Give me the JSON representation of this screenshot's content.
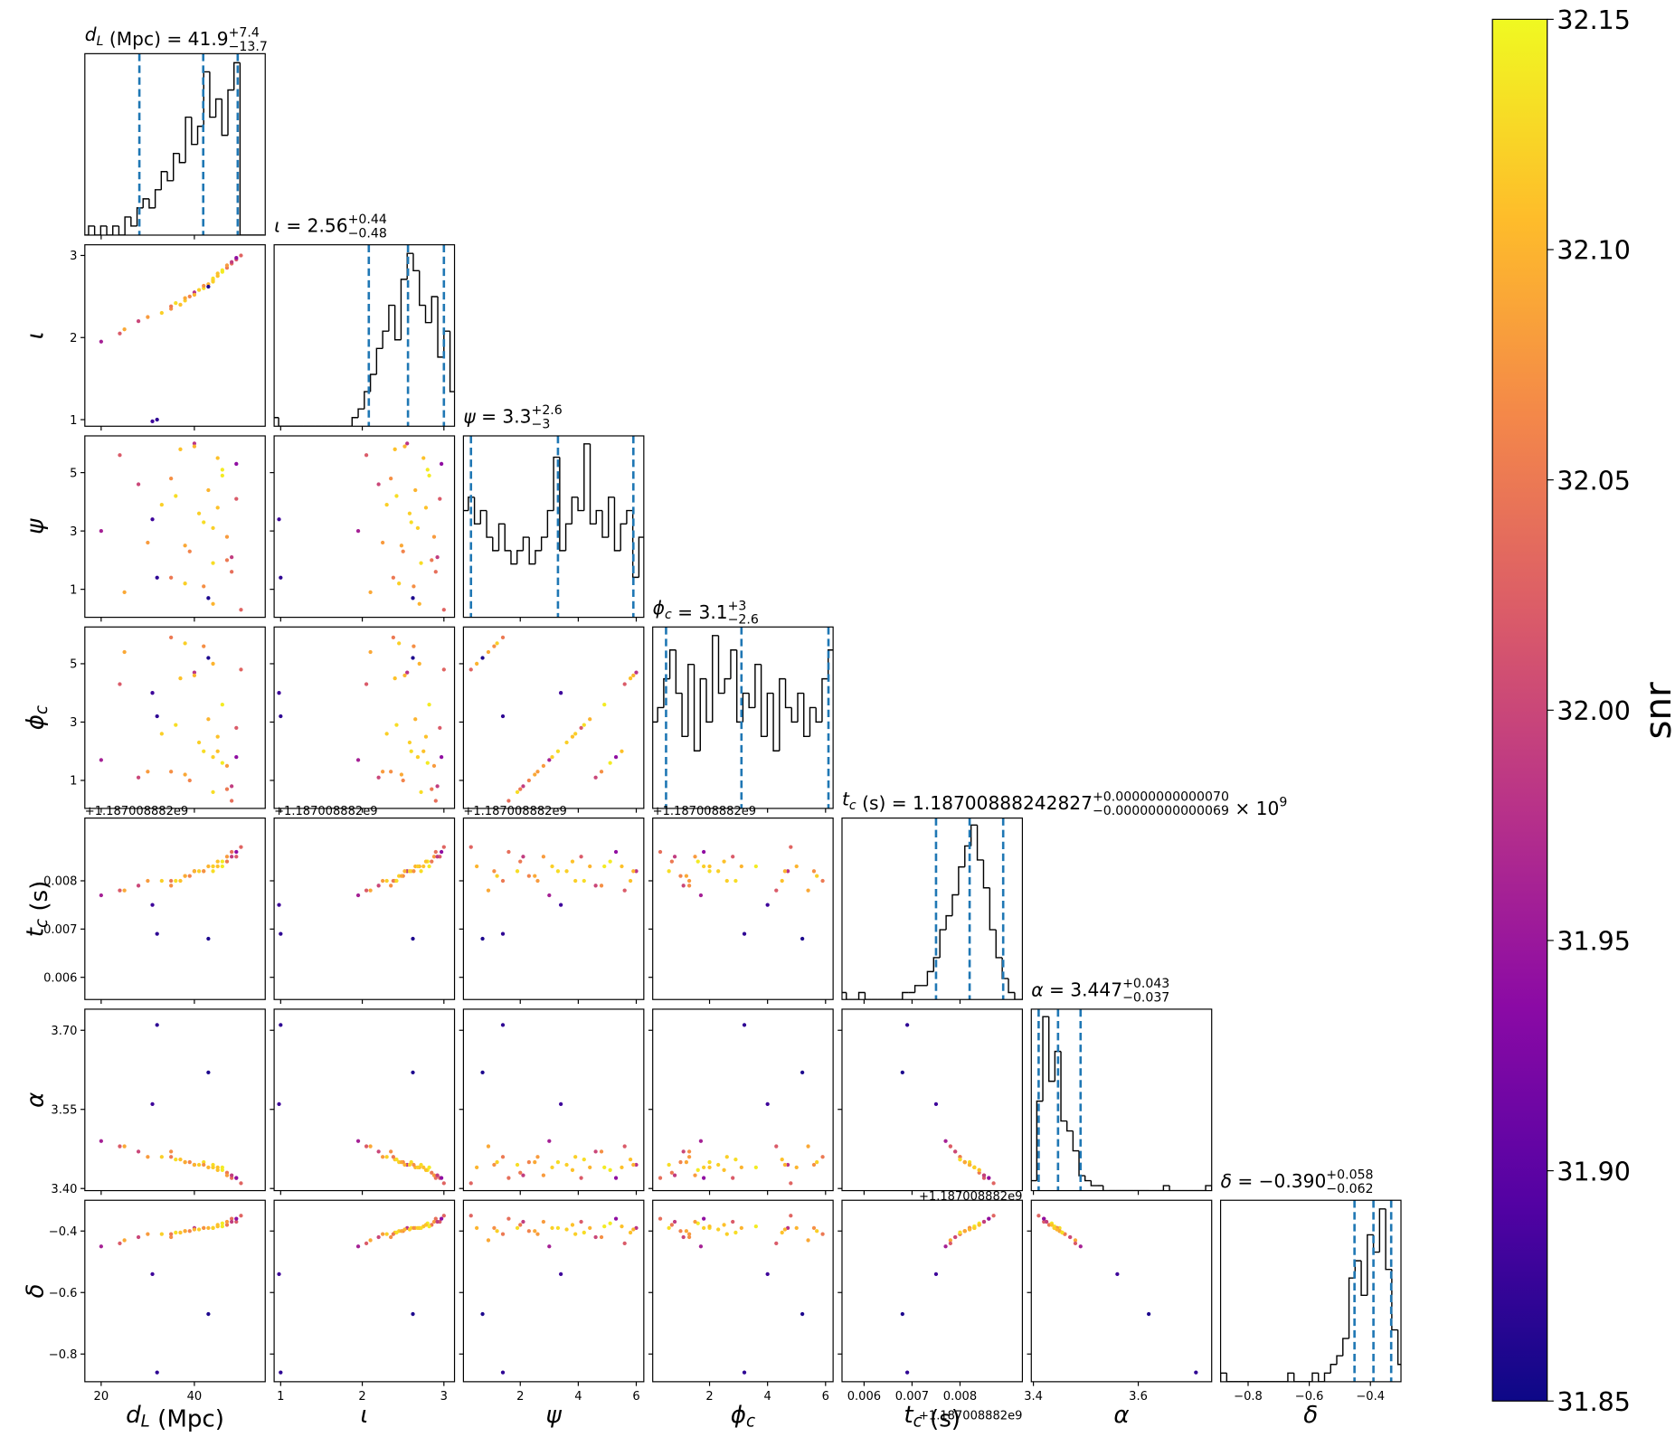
{
  "chart_data": {
    "type": "corner",
    "hist_color": "#000000",
    "quantile_color": "#1f77b4",
    "parameters": [
      {
        "label": {
          "lead": "d",
          "lead_sub": "L",
          "text": " (Mpc)"
        },
        "title": {
          "lead": "d",
          "lead_sub": "L",
          "text": " (Mpc) = 41.9",
          "sup": "+7.4",
          "sub": "−13.7"
        },
        "xlim": [
          16.5,
          55.2
        ],
        "xticks": [
          20,
          40
        ],
        "quantiles": [
          28.2,
          41.9,
          49.3
        ],
        "bins": [
          16,
          17.3,
          18.6,
          19.9,
          21.2,
          22.5,
          23.8,
          25.1,
          26.4,
          27.7,
          29,
          30.3,
          31.6,
          32.9,
          34.2,
          35.5,
          36.8,
          38.1,
          39.4,
          40.7,
          42,
          43.3,
          44.6,
          45.9,
          47.2,
          48.5,
          49.8,
          51.1,
          52.4,
          53.7,
          55
        ],
        "counts": [
          0,
          1,
          0,
          1,
          0,
          1,
          0,
          2,
          1,
          3,
          4,
          3,
          5,
          7,
          6,
          9,
          8,
          13,
          10,
          12,
          18,
          13,
          15,
          11,
          16,
          19,
          0,
          0,
          0,
          0
        ],
        "hist_ylim": [
          0,
          20
        ]
      },
      {
        "label": {
          "lead": "ι"
        },
        "title": {
          "lead": "ι",
          "text": " = 2.56",
          "sup": "+0.44",
          "sub": "−0.48"
        },
        "xlim": [
          0.92,
          3.13
        ],
        "xticks": [
          1,
          2,
          3
        ],
        "yticks": [
          1,
          2,
          3
        ],
        "quantiles": [
          2.08,
          2.56,
          3.0
        ],
        "bins": [
          0.9,
          0.975,
          1.05,
          1.125,
          1.2,
          1.275,
          1.35,
          1.425,
          1.5,
          1.575,
          1.65,
          1.725,
          1.8,
          1.875,
          1.95,
          2.025,
          2.1,
          2.175,
          2.25,
          2.325,
          2.4,
          2.475,
          2.55,
          2.625,
          2.7,
          2.775,
          2.85,
          2.925,
          3,
          3.075,
          3.15
        ],
        "counts": [
          1,
          0,
          0,
          0,
          0,
          0,
          0,
          0,
          0,
          0,
          0,
          0,
          0,
          1,
          2,
          4,
          6,
          9,
          11,
          14,
          10,
          17,
          20,
          18,
          14,
          12,
          15,
          8,
          11,
          4
        ],
        "hist_ylim": [
          0,
          21
        ]
      },
      {
        "label": {
          "lead": "ψ"
        },
        "title": {
          "lead": "ψ",
          "text": " = 3.3",
          "sup": "+2.6",
          "sub": "−3"
        },
        "xlim": [
          0.04,
          6.26
        ],
        "xticks": [
          2,
          4,
          6
        ],
        "yticks": [
          1,
          3,
          5
        ],
        "quantiles": [
          0.3,
          3.3,
          5.9
        ],
        "bins": [
          0,
          0.21,
          0.42,
          0.63,
          0.84,
          1.05,
          1.26,
          1.47,
          1.68,
          1.89,
          2.1,
          2.31,
          2.52,
          2.73,
          2.94,
          3.15,
          3.36,
          3.57,
          3.78,
          3.99,
          4.2,
          4.41,
          4.62,
          4.83,
          5.04,
          5.25,
          5.46,
          5.67,
          5.88,
          6.09,
          6.3
        ],
        "counts": [
          8,
          9,
          7,
          8,
          6,
          5,
          7,
          5,
          4,
          5,
          6,
          4,
          5,
          6,
          8,
          12,
          5,
          7,
          9,
          8,
          13,
          7,
          8,
          6,
          9,
          5,
          7,
          8,
          3,
          6
        ],
        "hist_ylim": [
          0,
          13.6
        ]
      },
      {
        "label": {
          "lead": "ϕ",
          "lead_sub": "c"
        },
        "title": {
          "lead": "ϕ",
          "lead_sub": "c",
          "text": " = 3.1",
          "sup": "+3",
          "sub": "−2.6"
        },
        "xlim": [
          0.04,
          6.26
        ],
        "xticks": [
          2,
          4,
          6
        ],
        "yticks": [
          1,
          3,
          5
        ],
        "quantiles": [
          0.5,
          3.1,
          6.1
        ],
        "bins": [
          0,
          0.21,
          0.42,
          0.63,
          0.84,
          1.05,
          1.26,
          1.47,
          1.68,
          1.89,
          2.1,
          2.31,
          2.52,
          2.73,
          2.94,
          3.15,
          3.36,
          3.57,
          3.78,
          3.99,
          4.2,
          4.41,
          4.62,
          4.83,
          5.04,
          5.25,
          5.46,
          5.67,
          5.88,
          6.09,
          6.3
        ],
        "counts": [
          6,
          7,
          9,
          11,
          8,
          5,
          10,
          4,
          9,
          6,
          12,
          8,
          9,
          11,
          6,
          8,
          7,
          10,
          5,
          8,
          4,
          9,
          7,
          6,
          8,
          5,
          7,
          6,
          9,
          11
        ],
        "hist_ylim": [
          0,
          12.6
        ]
      },
      {
        "label": {
          "lead": "t",
          "lead_sub": "c",
          "text": " (s)"
        },
        "title": {
          "lead": "t",
          "lead_sub": "c",
          "text": " (s) = 1.18700888242827",
          "sup": "+0.00000000000070",
          "sub": "−0.00000000000069",
          "tail": " × 10",
          "tail_sup": "9"
        },
        "offset_label": "+1.187008882e9",
        "xlim": [
          0.00554,
          0.0093
        ],
        "xticks": [
          0.006,
          0.007,
          0.008
        ],
        "yticks": [
          0.006,
          0.007,
          0.008
        ],
        "quantiles": [
          0.0075,
          0.0082,
          0.0089
        ],
        "bins": [
          0.0055,
          0.00563,
          0.00576,
          0.00589,
          0.00602,
          0.00615,
          0.00628,
          0.00641,
          0.00654,
          0.00667,
          0.0068,
          0.00693,
          0.00706,
          0.00719,
          0.00732,
          0.00745,
          0.00758,
          0.00771,
          0.00784,
          0.00797,
          0.0081,
          0.00823,
          0.00836,
          0.00849,
          0.00862,
          0.00875,
          0.00888,
          0.00901,
          0.00914,
          0.00927,
          0.0094
        ],
        "counts": [
          1,
          0,
          0,
          1,
          0,
          0,
          0,
          0,
          0,
          0,
          1,
          1,
          2,
          2,
          4,
          6,
          10,
          12,
          15,
          19,
          22,
          25,
          20,
          16,
          10,
          6,
          3,
          1,
          0,
          0
        ],
        "hist_ylim": [
          0,
          26
        ]
      },
      {
        "label": {
          "lead": "α"
        },
        "title": {
          "lead": "α",
          "text": " = 3.447",
          "sup": "+0.043",
          "sub": "−0.037"
        },
        "xlim": [
          3.396,
          3.74
        ],
        "xticks": [
          3.4,
          3.6
        ],
        "yticks": [
          {
            "value": 3.4,
            "label": "3.40"
          },
          {
            "value": 3.55,
            "label": "3.55"
          },
          {
            "value": 3.7,
            "label": "3.70"
          }
        ],
        "quantiles": [
          3.41,
          3.447,
          3.49
        ],
        "bins": [
          3.395,
          3.4065,
          3.418,
          3.4295,
          3.441,
          3.4525,
          3.464,
          3.4755,
          3.487,
          3.4985,
          3.51,
          3.5215,
          3.533,
          3.5445,
          3.556,
          3.5675,
          3.579,
          3.5905,
          3.602,
          3.6135,
          3.625,
          3.6365,
          3.648,
          3.6595,
          3.671,
          3.6825,
          3.694,
          3.7055,
          3.717,
          3.7285,
          3.74
        ],
        "counts": [
          2,
          18,
          35,
          22,
          28,
          14,
          12,
          8,
          3,
          2,
          1,
          1,
          0,
          0,
          0,
          0,
          0,
          0,
          0,
          0,
          0,
          0,
          1,
          0,
          0,
          0,
          0,
          0,
          0,
          1
        ],
        "hist_ylim": [
          0,
          36.5
        ]
      },
      {
        "label": {
          "lead": "δ"
        },
        "title": {
          "lead": "δ",
          "text": " = −0.390",
          "sup": "+0.058",
          "sub": "−0.062"
        },
        "xlim": [
          -0.89,
          -0.3
        ],
        "xticks": [
          {
            "value": -0.8,
            "label": "−0.8"
          },
          {
            "value": -0.6,
            "label": "−0.6"
          },
          {
            "value": -0.4,
            "label": "−0.4"
          }
        ],
        "yticks": [
          {
            "value": -0.4,
            "label": "−0.4"
          },
          {
            "value": -0.6,
            "label": "−0.6"
          },
          {
            "value": -0.8,
            "label": "−0.8"
          }
        ],
        "quantiles": [
          -0.452,
          -0.39,
          -0.332
        ],
        "bins": [
          -0.89,
          -0.87,
          -0.85,
          -0.83,
          -0.81,
          -0.79,
          -0.77,
          -0.75,
          -0.73,
          -0.71,
          -0.69,
          -0.67,
          -0.65,
          -0.63,
          -0.61,
          -0.59,
          -0.57,
          -0.55,
          -0.53,
          -0.51,
          -0.49,
          -0.47,
          -0.45,
          -0.43,
          -0.41,
          -0.39,
          -0.37,
          -0.35,
          -0.33,
          -0.31,
          -0.29
        ],
        "counts": [
          1,
          0,
          0,
          0,
          0,
          0,
          0,
          0,
          0,
          0,
          0,
          1,
          0,
          0,
          0,
          1,
          0,
          1,
          2,
          3,
          5,
          12,
          14,
          10,
          17,
          15,
          20,
          13,
          6,
          2
        ],
        "hist_ylim": [
          0,
          21
        ]
      }
    ],
    "samples": [
      [
        44,
        2.7,
        0.5,
        5.0,
        0.0083,
        3.44,
        -0.39,
        32.1
      ],
      [
        38,
        2.45,
        1.2,
        5.7,
        0.0081,
        3.45,
        -0.4,
        32.12
      ],
      [
        47,
        2.85,
        2.0,
        0.7,
        0.0084,
        3.43,
        -0.38,
        32.05
      ],
      [
        30,
        2.25,
        2.6,
        1.3,
        0.008,
        3.46,
        -0.41,
        32.08
      ],
      [
        42,
        2.6,
        3.3,
        2.0,
        0.0082,
        3.45,
        -0.39,
        32.13
      ],
      [
        49,
        2.95,
        4.1,
        2.8,
        0.0085,
        3.42,
        -0.37,
        32.02
      ],
      [
        35,
        2.35,
        4.8,
        1.3,
        0.0079,
        3.47,
        -0.42,
        32.07
      ],
      [
        45,
        2.75,
        5.5,
        2.0,
        0.0083,
        3.44,
        -0.385,
        32.11
      ],
      [
        40,
        2.55,
        6.0,
        4.7,
        0.0082,
        3.445,
        -0.39,
        31.98
      ],
      [
        25,
        2.1,
        0.9,
        5.4,
        0.0078,
        3.48,
        -0.43,
        32.09
      ],
      [
        48,
        2.9,
        1.6,
        0.3,
        0.0086,
        3.42,
        -0.36,
        32.04
      ],
      [
        33,
        2.3,
        3.9,
        2.6,
        0.008,
        3.46,
        -0.41,
        32.12
      ],
      [
        46,
        2.8,
        5.1,
        1.6,
        0.0084,
        3.435,
        -0.375,
        32.14
      ],
      [
        39,
        2.5,
        2.3,
        1.0,
        0.0081,
        3.45,
        -0.4,
        32.06
      ],
      [
        43,
        2.65,
        4.4,
        3.1,
        0.0083,
        3.44,
        -0.39,
        32.1
      ],
      [
        20,
        1.95,
        3.0,
        1.7,
        0.0077,
        3.49,
        -0.45,
        31.96
      ],
      [
        50,
        3.0,
        0.3,
        4.8,
        0.0087,
        3.41,
        -0.35,
        32.03
      ],
      [
        37,
        2.4,
        5.8,
        4.5,
        0.008,
        3.455,
        -0.405,
        32.11
      ],
      [
        44,
        2.72,
        1.9,
        0.6,
        0.0082,
        3.445,
        -0.39,
        32.13
      ],
      [
        28,
        2.2,
        4.6,
        1.1,
        0.0079,
        3.47,
        -0.42,
        32.0
      ],
      [
        47,
        2.88,
        2.8,
        1.5,
        0.0085,
        3.425,
        -0.37,
        32.08
      ],
      [
        41,
        2.58,
        3.6,
        2.3,
        0.0082,
        3.445,
        -0.395,
        32.12
      ],
      [
        35,
        2.38,
        1.4,
        5.9,
        0.008,
        3.46,
        -0.41,
        32.05
      ],
      [
        49,
        2.97,
        5.3,
        1.8,
        0.0086,
        3.42,
        -0.36,
        31.94
      ],
      [
        31,
        0.98,
        3.4,
        4.0,
        0.0075,
        3.56,
        -0.54,
        31.88
      ],
      [
        43,
        2.62,
        0.7,
        5.2,
        0.0068,
        3.62,
        -0.67,
        31.86
      ],
      [
        46,
        2.82,
        4.9,
        3.6,
        0.0083,
        3.44,
        -0.385,
        32.14
      ],
      [
        38,
        2.48,
        2.5,
        1.2,
        0.0081,
        3.45,
        -0.4,
        32.09
      ],
      [
        24,
        2.05,
        5.6,
        4.3,
        0.0078,
        3.48,
        -0.44,
        32.02
      ],
      [
        45,
        2.78,
        3.8,
        2.5,
        0.0084,
        3.435,
        -0.38,
        32.11
      ],
      [
        42,
        2.63,
        1.1,
        5.6,
        0.0082,
        3.445,
        -0.39,
        32.07
      ],
      [
        36,
        2.42,
        4.2,
        2.9,
        0.008,
        3.455,
        -0.405,
        32.13
      ],
      [
        48,
        2.92,
        2.1,
        0.8,
        0.0085,
        3.425,
        -0.37,
        31.99
      ],
      [
        40,
        2.52,
        5.9,
        4.6,
        0.0082,
        3.445,
        -0.395,
        32.1
      ],
      [
        32,
        1.0,
        1.4,
        3.2,
        0.0069,
        3.71,
        -0.86,
        31.87
      ],
      [
        44,
        2.68,
        3.1,
        1.8,
        0.0083,
        3.44,
        -0.39,
        32.12
      ]
    ],
    "colorbar": {
      "label": "snr",
      "colormap": [
        "#0d0887",
        "#5302a3",
        "#8b0aa5",
        "#b83289",
        "#db5c68",
        "#f48849",
        "#febd2a",
        "#f0f921"
      ],
      "lim": [
        31.85,
        32.15
      ],
      "ticks": [
        31.85,
        {
          "value": 31.9,
          "label": "31.90"
        },
        31.95,
        {
          "value": 32.0,
          "label": "32.00"
        },
        32.05,
        {
          "value": 32.1,
          "label": "32.10"
        },
        32.15
      ]
    }
  }
}
